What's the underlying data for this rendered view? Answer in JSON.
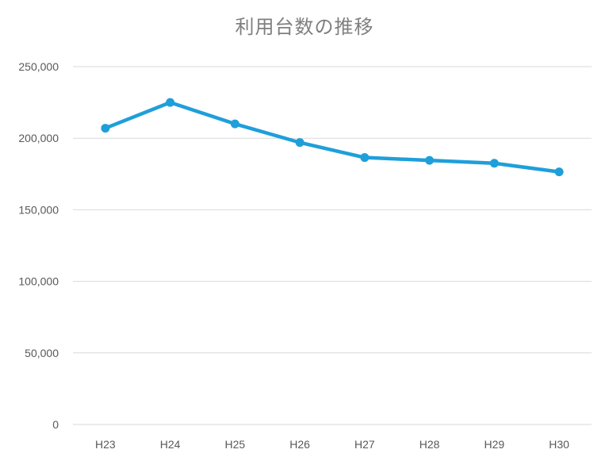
{
  "chart_data": {
    "type": "line",
    "title": "利用台数の推移",
    "xlabel": "",
    "ylabel": "",
    "categories": [
      "H23",
      "H24",
      "H25",
      "H26",
      "H27",
      "H28",
      "H29",
      "H30"
    ],
    "series": [
      {
        "values": [
          207000,
          225000,
          210000,
          197000,
          186500,
          184500,
          182500,
          176500
        ],
        "color": "#1f9fda"
      }
    ],
    "ylim": [
      0,
      250000
    ],
    "yticks": [
      0,
      50000,
      100000,
      150000,
      200000,
      250000
    ],
    "ytick_labels": [
      "0",
      "50,000",
      "100,000",
      "150,000",
      "200,000",
      "250,000"
    ],
    "grid": true,
    "gridline_color": "#d9d9d9",
    "legend": "none"
  }
}
